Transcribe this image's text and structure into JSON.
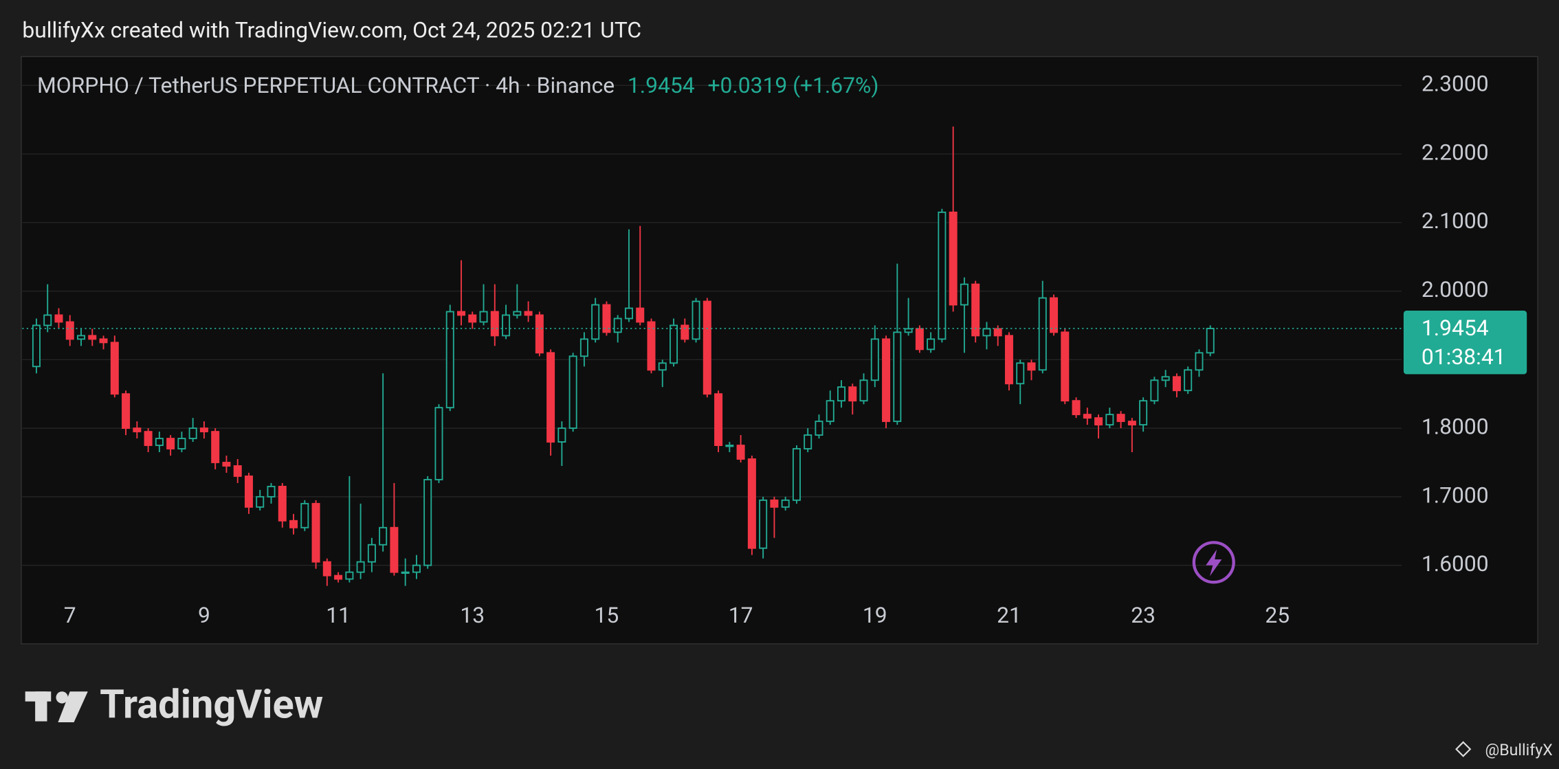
{
  "header": "bullifyXx created with TradingView.com, Oct 24, 2025 02:21 UTC",
  "chart_data": {
    "type": "candlestick",
    "title": "MORPHO / TetherUS PERPETUAL CONTRACT · 4h · Binance",
    "last_price": 1.9454,
    "change": "+0.0319 (+1.67%)",
    "countdown": "01:38:41",
    "up_color": "#22ab94",
    "down_color": "#f23645",
    "grid": true,
    "xlim": [
      6.2889,
      26.8519
    ],
    "ylim": [
      1.4855,
      2.342
    ],
    "xticks": [
      7,
      9,
      11,
      13,
      15,
      17,
      19,
      21,
      23,
      25
    ],
    "yticks": [
      {
        "value": 1.6,
        "label": "1.6000"
      },
      {
        "value": 1.7,
        "label": "1.7000"
      },
      {
        "value": 1.8,
        "label": "1.8000"
      },
      {
        "value": 1.9,
        "label": "1.9000"
      },
      {
        "value": 2.0,
        "label": "2.0000"
      },
      {
        "value": 2.1,
        "label": "2.1000"
      },
      {
        "value": 2.2,
        "label": "2.2000"
      },
      {
        "value": 2.3,
        "label": "2.3000"
      }
    ],
    "x": [
      6.5,
      6.6667,
      6.8333,
      7,
      7.1667,
      7.3333,
      7.5,
      7.6667,
      7.8333,
      8,
      8.1667,
      8.3333,
      8.5,
      8.6667,
      8.8333,
      9,
      9.1667,
      9.3333,
      9.5,
      9.6667,
      9.8333,
      10,
      10.1667,
      10.3333,
      10.5,
      10.6667,
      10.8333,
      11,
      11.1667,
      11.3333,
      11.5,
      11.6667,
      11.8333,
      12,
      12.1667,
      12.3333,
      12.5,
      12.6667,
      12.8333,
      13,
      13.1667,
      13.3333,
      13.5,
      13.6667,
      13.8333,
      14,
      14.1667,
      14.3333,
      14.5,
      14.6667,
      14.8333,
      15,
      15.1667,
      15.3333,
      15.5,
      15.6667,
      15.8333,
      16,
      16.1667,
      16.3333,
      16.5,
      16.6667,
      16.8333,
      17,
      17.1667,
      17.3333,
      17.5,
      17.6667,
      17.8333,
      18,
      18.1667,
      18.3333,
      18.5,
      18.6667,
      18.8333,
      19,
      19.1667,
      19.3333,
      19.5,
      19.6667,
      19.8333,
      20,
      20.1667,
      20.3333,
      20.5,
      20.6667,
      20.8333,
      21,
      21.1667,
      21.3333,
      21.5,
      21.6667,
      21.8333,
      22,
      22.1667,
      22.3333,
      22.5,
      22.6667,
      22.8333,
      23,
      23.1667,
      23.3333,
      23.5,
      23.6667,
      23.8333,
      24
    ],
    "open": [
      1.89,
      1.95,
      1.965,
      1.955,
      1.93,
      1.935,
      1.93,
      1.925,
      1.85,
      1.8,
      1.795,
      1.775,
      1.785,
      1.77,
      1.785,
      1.8,
      1.795,
      1.75,
      1.745,
      1.73,
      1.685,
      1.7,
      1.715,
      1.665,
      1.655,
      1.69,
      1.605,
      1.585,
      1.58,
      1.59,
      1.605,
      1.63,
      1.655,
      1.59,
      1.59,
      1.6,
      1.725,
      1.83,
      1.97,
      1.965,
      1.955,
      1.97,
      1.935,
      1.965,
      1.97,
      1.965,
      1.91,
      1.78,
      1.8,
      1.905,
      1.93,
      1.98,
      1.94,
      1.96,
      1.975,
      1.955,
      1.885,
      1.895,
      1.95,
      1.93,
      1.985,
      1.85,
      1.775,
      1.775,
      1.755,
      1.625,
      1.695,
      1.685,
      1.695,
      1.77,
      1.79,
      1.81,
      1.84,
      1.86,
      1.84,
      1.87,
      1.93,
      1.81,
      1.94,
      1.945,
      1.915,
      1.93,
      2.115,
      1.98,
      2.01,
      1.935,
      1.945,
      1.935,
      1.865,
      1.895,
      1.885,
      1.99,
      1.94,
      1.84,
      1.82,
      1.815,
      1.805,
      1.82,
      1.81,
      1.805,
      1.84,
      1.87,
      1.875,
      1.855,
      1.885,
      1.91
    ],
    "high": [
      1.96,
      2.01,
      1.975,
      1.965,
      1.945,
      1.945,
      1.935,
      1.935,
      1.855,
      1.81,
      1.8,
      1.795,
      1.79,
      1.795,
      1.815,
      1.81,
      1.8,
      1.76,
      1.755,
      1.735,
      1.71,
      1.72,
      1.72,
      1.675,
      1.695,
      1.695,
      1.61,
      1.59,
      1.73,
      1.69,
      1.64,
      1.88,
      1.72,
      1.61,
      1.615,
      1.73,
      1.835,
      1.98,
      2.045,
      1.97,
      2.01,
      2.01,
      1.98,
      2.01,
      1.985,
      1.97,
      1.915,
      1.81,
      1.91,
      1.94,
      1.99,
      1.985,
      1.965,
      2.09,
      2.095,
      1.96,
      1.9,
      1.96,
      1.96,
      1.99,
      1.99,
      1.855,
      1.78,
      1.79,
      1.76,
      1.7,
      1.7,
      1.7,
      1.775,
      1.8,
      1.82,
      1.855,
      1.87,
      1.865,
      1.88,
      1.95,
      1.935,
      2.04,
      1.99,
      1.95,
      1.94,
      2.12,
      2.24,
      2.02,
      2.015,
      1.955,
      1.95,
      1.94,
      1.9,
      1.9,
      2.015,
      1.995,
      1.945,
      1.845,
      1.83,
      1.82,
      1.83,
      1.825,
      1.815,
      1.845,
      1.875,
      1.885,
      1.88,
      1.89,
      1.915,
      1.95
    ],
    "low": [
      1.88,
      1.94,
      1.945,
      1.92,
      1.92,
      1.92,
      1.915,
      1.845,
      1.79,
      1.785,
      1.765,
      1.765,
      1.76,
      1.765,
      1.78,
      1.785,
      1.74,
      1.735,
      1.72,
      1.675,
      1.68,
      1.69,
      1.655,
      1.645,
      1.65,
      1.595,
      1.57,
      1.575,
      1.575,
      1.58,
      1.59,
      1.62,
      1.585,
      1.57,
      1.58,
      1.595,
      1.72,
      1.825,
      1.95,
      1.945,
      1.95,
      1.92,
      1.93,
      1.96,
      1.955,
      1.905,
      1.76,
      1.745,
      1.795,
      1.89,
      1.925,
      1.935,
      1.925,
      1.955,
      1.95,
      1.88,
      1.86,
      1.89,
      1.925,
      1.925,
      1.845,
      1.765,
      1.765,
      1.75,
      1.615,
      1.61,
      1.64,
      1.68,
      1.69,
      1.765,
      1.785,
      1.805,
      1.83,
      1.82,
      1.835,
      1.86,
      1.8,
      1.805,
      1.935,
      1.91,
      1.91,
      1.925,
      1.97,
      1.91,
      1.925,
      1.915,
      1.92,
      1.855,
      1.835,
      1.87,
      1.88,
      1.935,
      1.835,
      1.815,
      1.805,
      1.785,
      1.8,
      1.8,
      1.765,
      1.795,
      1.835,
      1.86,
      1.845,
      1.85,
      1.875,
      1.905
    ],
    "close": [
      1.95,
      1.965,
      1.955,
      1.93,
      1.935,
      1.93,
      1.925,
      1.85,
      1.8,
      1.795,
      1.775,
      1.785,
      1.77,
      1.785,
      1.8,
      1.795,
      1.75,
      1.745,
      1.73,
      1.685,
      1.7,
      1.715,
      1.665,
      1.655,
      1.69,
      1.605,
      1.585,
      1.58,
      1.59,
      1.605,
      1.63,
      1.655,
      1.59,
      1.59,
      1.6,
      1.725,
      1.83,
      1.97,
      1.965,
      1.955,
      1.97,
      1.935,
      1.965,
      1.97,
      1.965,
      1.91,
      1.78,
      1.8,
      1.905,
      1.93,
      1.98,
      1.94,
      1.96,
      1.975,
      1.955,
      1.885,
      1.895,
      1.95,
      1.93,
      1.985,
      1.85,
      1.775,
      1.775,
      1.755,
      1.625,
      1.695,
      1.685,
      1.695,
      1.77,
      1.79,
      1.81,
      1.84,
      1.86,
      1.84,
      1.87,
      1.93,
      1.81,
      1.94,
      1.945,
      1.915,
      1.93,
      2.115,
      1.98,
      2.01,
      1.935,
      1.945,
      1.935,
      1.865,
      1.895,
      1.885,
      1.99,
      1.94,
      1.84,
      1.82,
      1.815,
      1.805,
      1.82,
      1.81,
      1.805,
      1.84,
      1.87,
      1.875,
      1.855,
      1.885,
      1.91,
      1.9454
    ]
  },
  "footer": {
    "logo": "TradingView",
    "watermark": "@BullifyX"
  }
}
